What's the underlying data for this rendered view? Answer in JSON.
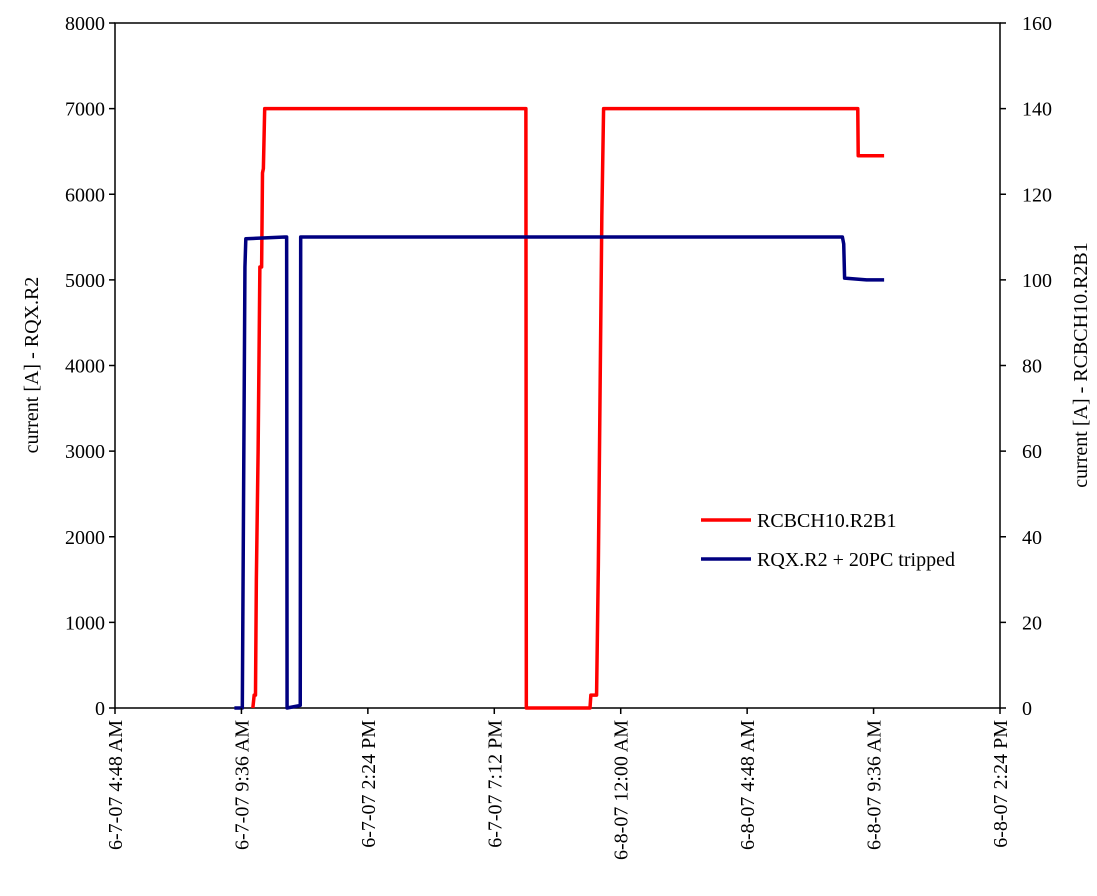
{
  "chart_data": {
    "type": "line",
    "title": "",
    "x_axis": {
      "label": "",
      "type": "datetime",
      "ticks": [
        "6-7-07 4:48 AM",
        "6-7-07 9:36 AM",
        "6-7-07 2:24 PM",
        "6-7-07 7:12 PM",
        "6-8-07 12:00 AM",
        "6-8-07 4:48 AM",
        "6-8-07 9:36 AM",
        "6-8-07 2:24 PM"
      ],
      "range": [
        "2007-06-07T04:48",
        "2007-06-08T14:24"
      ]
    },
    "y_axis_left": {
      "label": "current [A] - RQX.R2",
      "range": [
        0,
        8000
      ],
      "ticks": [
        "0",
        "1000",
        "2000",
        "3000",
        "4000",
        "5000",
        "6000",
        "7000",
        "8000"
      ]
    },
    "y_axis_right": {
      "label": "current [A] - RCBCH10.R2B1",
      "range": [
        0,
        160
      ],
      "ticks": [
        "0",
        "20",
        "40",
        "60",
        "80",
        "100",
        "120",
        "140",
        "160"
      ]
    },
    "grid": false,
    "legend": {
      "placement": "right-middle"
    },
    "series": [
      {
        "name": "RCBCH10.R2B1",
        "axis": "right",
        "color": "#ff0000",
        "points": [
          [
            "2007-06-07T10:02",
            0
          ],
          [
            "2007-06-07T10:05",
            3
          ],
          [
            "2007-06-07T10:08",
            3
          ],
          [
            "2007-06-07T10:10",
            30
          ],
          [
            "2007-06-07T10:14",
            60
          ],
          [
            "2007-06-07T10:18",
            103
          ],
          [
            "2007-06-07T10:22",
            103
          ],
          [
            "2007-06-07T10:24",
            125
          ],
          [
            "2007-06-07T10:26",
            126
          ],
          [
            "2007-06-07T10:29",
            140
          ],
          [
            "2007-06-07T20:24",
            140
          ],
          [
            "2007-06-07T20:25",
            0
          ],
          [
            "2007-06-07T22:50",
            0
          ],
          [
            "2007-06-07T22:52",
            3
          ],
          [
            "2007-06-07T23:05",
            3
          ],
          [
            "2007-06-07T23:09",
            33
          ],
          [
            "2007-06-07T23:13",
            74
          ],
          [
            "2007-06-07T23:17",
            115
          ],
          [
            "2007-06-07T23:21",
            140
          ],
          [
            "2007-06-08T09:00",
            140
          ],
          [
            "2007-06-08T09:01",
            129
          ],
          [
            "2007-06-08T10:00",
            129
          ]
        ]
      },
      {
        "name": "RQX.R2 + 20PC tripped",
        "axis": "left",
        "color": "#000080",
        "points": [
          [
            "2007-06-07T09:20",
            0
          ],
          [
            "2007-06-07T09:38",
            0
          ],
          [
            "2007-06-07T09:44",
            5150
          ],
          [
            "2007-06-07T09:46",
            5480
          ],
          [
            "2007-06-07T11:15",
            5500
          ],
          [
            "2007-06-07T11:19",
            5500
          ],
          [
            "2007-06-07T11:20",
            0
          ],
          [
            "2007-06-07T11:50",
            30
          ],
          [
            "2007-06-07T11:51",
            5500
          ],
          [
            "2007-06-08T08:25",
            5500
          ],
          [
            "2007-06-08T08:28",
            5420
          ],
          [
            "2007-06-08T08:30",
            5020
          ],
          [
            "2007-06-08T09:20",
            5000
          ],
          [
            "2007-06-08T10:00",
            5000
          ]
        ]
      }
    ]
  }
}
